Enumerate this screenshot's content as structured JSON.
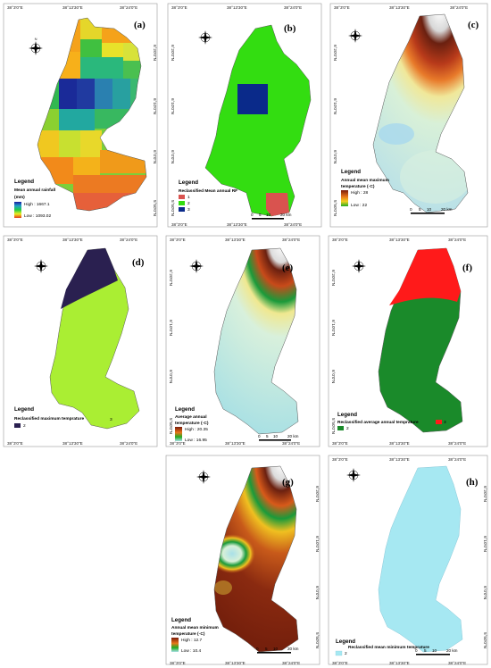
{
  "ticks": {
    "lon": [
      "38°3'0\"E",
      "38°13'30\"E",
      "38°24'0\"E"
    ],
    "lat_top": [
      "6°20'0\"N",
      "6°10'0\"N",
      "6°0'0\"N",
      "5°50'0\"N"
    ],
    "lat_mid": [
      "6°20'0\"N",
      "6°10'0\"N",
      "6°0'0\"N",
      "5°50'0\"N"
    ],
    "lat_bot": [
      "6°20'0\"N",
      "6°10'0\"N",
      "6°0'0\"N",
      "5°50'0\"N"
    ]
  },
  "scale_bar": {
    "labels": [
      "0",
      "5",
      "10",
      "20 km"
    ]
  },
  "north_arrow": {
    "letters": [
      "N",
      "E",
      "S",
      "W"
    ]
  },
  "panels": [
    {
      "id": "a",
      "label": "(a)",
      "legend_word": "Legend",
      "legend_title": "Mean annual rainfall",
      "legend_unit": "(mm)",
      "high_label": "High : 1667.1",
      "low_label": "Low : 1093.02",
      "colors": {
        "high": "#1a1aa0",
        "low": "#e23a1a"
      }
    },
    {
      "id": "b",
      "label": "(b)",
      "legend_word": "Legend",
      "legend_title": "Reclassified Mean annual RF",
      "classes": [
        {
          "value": "1",
          "color": "#d9534f"
        },
        {
          "value": "2",
          "color": "#33dd11"
        },
        {
          "value": "3",
          "color": "#0a2a8a"
        }
      ]
    },
    {
      "id": "c",
      "label": "(c)",
      "legend_word": "Legend",
      "legend_title": "Annual mean maximum",
      "legend_unit": "temperature (◦C)",
      "high_label": "High : 28",
      "low_label": "Low : 22"
    },
    {
      "id": "d",
      "label": "(d)",
      "legend_word": "Legend",
      "legend_title": "Reclassified maximum temprature",
      "classes": [
        {
          "value": "3",
          "color": "#aaee33"
        },
        {
          "value": "2",
          "color": "#2a2050"
        }
      ]
    },
    {
      "id": "e",
      "label": "(e)",
      "legend_word": "Legend",
      "legend_title": "Average annual",
      "legend_unit": "temperature (◦C)",
      "high_label": "High : 20.35",
      "low_label": "Low : 16.95"
    },
    {
      "id": "f",
      "label": "(f)",
      "legend_word": "Legend",
      "legend_title": "Reclassified average annual temprature",
      "classes": [
        {
          "value": "3",
          "color": "#ff1a1a"
        },
        {
          "value": "2",
          "color": "#1a8a2a"
        }
      ]
    },
    {
      "id": "g",
      "label": "(g)",
      "legend_word": "Legend",
      "legend_title": "Annual mean minimum",
      "legend_unit": "temperature (◦C)",
      "high_label": "High : 12.7",
      "low_label": "Low : 10.4"
    },
    {
      "id": "h",
      "label": "(h)",
      "legend_word": "Legend",
      "legend_title": "Reclassified  mean minimum temprature",
      "classes": [
        {
          "value": "2",
          "color": "#a6e8f2"
        }
      ]
    }
  ]
}
